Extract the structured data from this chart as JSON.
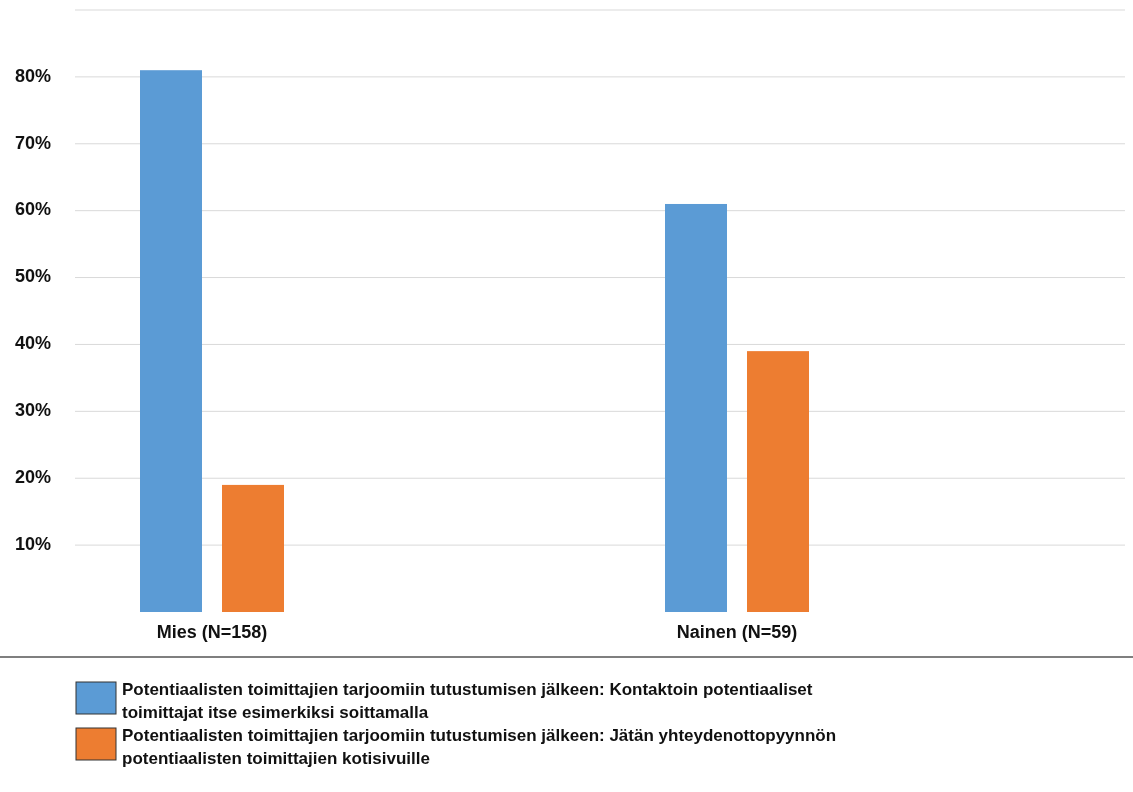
{
  "chart_data": {
    "type": "bar",
    "categories": [
      "Mies (N=158)",
      "Nainen (N=59)"
    ],
    "series": [
      {
        "name": "Potentiaalisten toimittajien tarjoomiin tutustumisen jälkeen: Kontaktoin potentiaaliset toimittajat itse esimerkiksi soittamalla",
        "color": "#5b9bd5",
        "values": [
          81,
          61
        ]
      },
      {
        "name": "Potentiaalisten toimittajien tarjoomiin tutustumisen jälkeen: Jätän yhteydenottopyynnön potentiaalisten toimittajien kotisivuille",
        "color": "#ed7d31",
        "values": [
          19,
          39
        ]
      }
    ],
    "ylim": [
      0,
      90
    ],
    "yticks": [
      {
        "value": 10,
        "label": "10%"
      },
      {
        "value": 20,
        "label": "20%"
      },
      {
        "value": 30,
        "label": "30%"
      },
      {
        "value": 40,
        "label": "40%"
      },
      {
        "value": 50,
        "label": "50%"
      },
      {
        "value": 60,
        "label": "60%"
      },
      {
        "value": 70,
        "label": "70%"
      },
      {
        "value": 80,
        "label": "80%"
      },
      {
        "value": 90,
        "label": null
      }
    ],
    "grid": "y",
    "legend": "bottom"
  }
}
